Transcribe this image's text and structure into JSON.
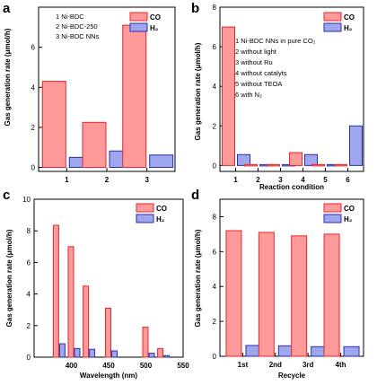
{
  "colors": {
    "co_fill": "#ff9a9a",
    "co_stroke": "#e8252c",
    "h2_fill": "#9ea6ee",
    "h2_stroke": "#2a2fa8",
    "axis": "#000000"
  },
  "chart_data": [
    {
      "panel": "a",
      "type": "bar",
      "x": [
        1,
        2,
        3
      ],
      "xticks": [
        "1",
        "2",
        "3"
      ],
      "xlim": [
        0.3,
        3.7
      ],
      "ylim": [
        -0.2,
        8
      ],
      "yticks": [
        0,
        2,
        4,
        6
      ],
      "xlabel": "",
      "ylabel": "Gas generation rate (μmol/h)",
      "legend_position": "top-right",
      "notes": [
        "1 Ni-BDC",
        "2 Ni-BDC-250",
        "3 Ni-BDC NNs"
      ],
      "series": [
        {
          "name": "CO",
          "values": [
            4.3,
            2.25,
            7.1
          ]
        },
        {
          "name": "H₂",
          "values": [
            0.5,
            0.82,
            0.62
          ]
        }
      ]
    },
    {
      "panel": "b",
      "type": "bar",
      "x": [
        1,
        2,
        3,
        4,
        5,
        6
      ],
      "xticks": [
        "1",
        "2",
        "3",
        "4",
        "5",
        "6"
      ],
      "xlim": [
        0.3,
        6.7
      ],
      "ylim": [
        -0.3,
        8
      ],
      "yticks": [
        0,
        2,
        4,
        6,
        8
      ],
      "xlabel": "Reaction condition",
      "ylabel": "Gas generation rate (μmol/h)",
      "legend_position": "top-right",
      "notes": [
        "1 Ni-BDC NNs in pure CO₂",
        "2 without light",
        "3 without Ru",
        "4 without catalyts",
        "5 without TEOA",
        "6 with N₂"
      ],
      "series": [
        {
          "name": "CO",
          "values": [
            7.0,
            0.0,
            0.0,
            0.65,
            0.0,
            0.0
          ]
        },
        {
          "name": "H₂",
          "values": [
            0.55,
            0.0,
            0.0,
            0.55,
            0.0,
            2.0
          ]
        }
      ]
    },
    {
      "panel": "c",
      "type": "bar",
      "x": [
        380,
        400,
        420,
        450,
        500,
        520
      ],
      "xticks": [
        "400",
        "450",
        "500",
        "550"
      ],
      "xtick_values": [
        400,
        450,
        500,
        550
      ],
      "xlim": [
        350,
        550
      ],
      "ylim": [
        0,
        10
      ],
      "yticks": [
        0,
        2,
        4,
        6,
        8,
        10
      ],
      "xlabel": "Wavelength (nm)",
      "ylabel": "Gas generation rate (μmol/h)",
      "legend_position": "top-right",
      "notes": [],
      "series": [
        {
          "name": "CO",
          "values": [
            8.35,
            7.0,
            4.5,
            3.1,
            1.9,
            0.55
          ]
        },
        {
          "name": "H₂",
          "values": [
            0.85,
            0.55,
            0.5,
            0.4,
            0.25,
            0.1
          ]
        }
      ]
    },
    {
      "panel": "d",
      "type": "bar",
      "x": [
        1,
        2,
        3,
        4
      ],
      "xticks": [
        "1st",
        "2nd",
        "3rd",
        "4th"
      ],
      "xlim": [
        0.3,
        4.7
      ],
      "ylim": [
        0,
        9
      ],
      "yticks": [
        0,
        2,
        4,
        6,
        8
      ],
      "xlabel": "Recycle",
      "ylabel": "Gas generation rate (μmol/h)",
      "legend_position": "top-right",
      "notes": [],
      "series": [
        {
          "name": "CO",
          "values": [
            7.2,
            7.1,
            6.9,
            7.0
          ]
        },
        {
          "name": "H₂",
          "values": [
            0.62,
            0.6,
            0.55,
            0.55
          ]
        }
      ]
    }
  ]
}
